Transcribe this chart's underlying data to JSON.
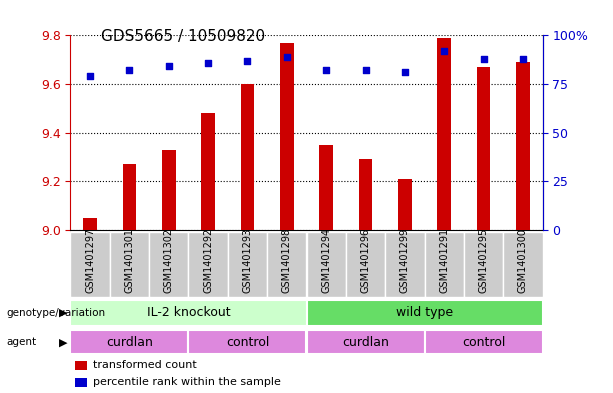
{
  "title": "GDS5665 / 10509820",
  "samples": [
    "GSM1401297",
    "GSM1401301",
    "GSM1401302",
    "GSM1401292",
    "GSM1401293",
    "GSM1401298",
    "GSM1401294",
    "GSM1401296",
    "GSM1401299",
    "GSM1401291",
    "GSM1401295",
    "GSM1401300"
  ],
  "transformed_count": [
    9.05,
    9.27,
    9.33,
    9.48,
    9.6,
    9.77,
    9.35,
    9.29,
    9.21,
    9.79,
    9.67,
    9.69
  ],
  "percentile_rank": [
    79,
    82,
    84,
    86,
    87,
    89,
    82,
    82,
    81,
    92,
    88,
    88
  ],
  "ylim_left": [
    9.0,
    9.8
  ],
  "ylim_right": [
    0,
    100
  ],
  "yticks_left": [
    9.0,
    9.2,
    9.4,
    9.6,
    9.8
  ],
  "yticks_right": [
    0,
    25,
    50,
    75,
    100
  ],
  "ytick_labels_right": [
    "0",
    "25",
    "50",
    "75",
    "100%"
  ],
  "bar_color": "#cc0000",
  "dot_color": "#0000cc",
  "bar_bottom": 9.0,
  "genotype_groups": [
    {
      "label": "IL-2 knockout",
      "start": 0,
      "end": 6,
      "color": "#ccffcc"
    },
    {
      "label": "wild type",
      "start": 6,
      "end": 12,
      "color": "#66dd66"
    }
  ],
  "agent_groups": [
    {
      "label": "curdlan",
      "start": 0,
      "end": 3
    },
    {
      "label": "control",
      "start": 3,
      "end": 6
    },
    {
      "label": "curdlan",
      "start": 6,
      "end": 9
    },
    {
      "label": "control",
      "start": 9,
      "end": 12
    }
  ],
  "agent_color": "#dd88dd",
  "legend_items": [
    {
      "label": "transformed count",
      "color": "#cc0000"
    },
    {
      "label": "percentile rank within the sample",
      "color": "#0000cc"
    }
  ],
  "tick_label_color_left": "#cc0000",
  "tick_label_color_right": "#0000cc",
  "title_fontsize": 11,
  "tick_fontsize": 9,
  "sample_bg_color": "#cccccc",
  "plot_bg_color": "#ffffff",
  "row_label_arrow_color": "#555555"
}
